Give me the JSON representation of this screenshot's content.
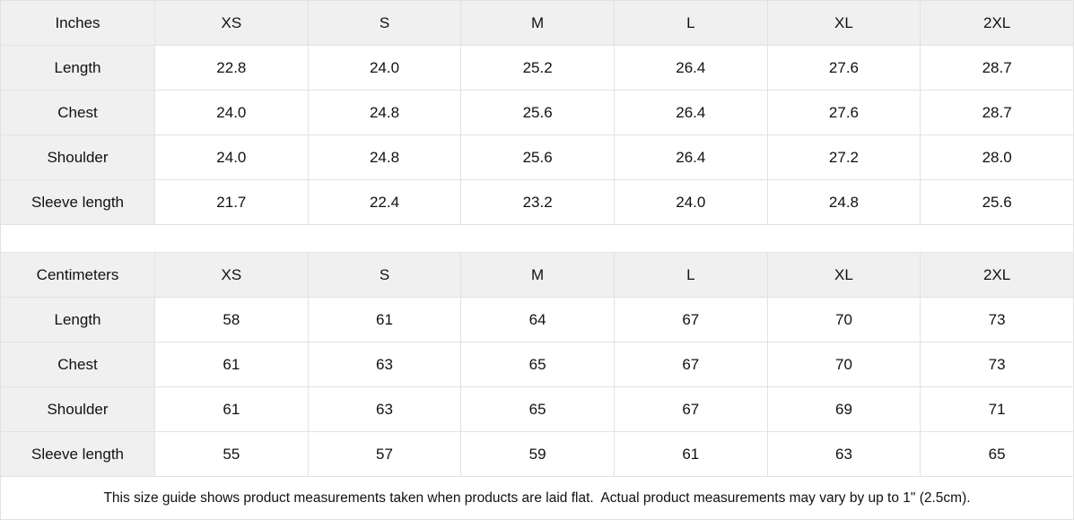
{
  "page": {
    "background": "#ffffff",
    "header_bg": "#f0f0f1",
    "border_color": "#e2e2e2",
    "text_color": "#111111"
  },
  "tables": [
    {
      "unit_label": "Inches",
      "columns": [
        "XS",
        "S",
        "M",
        "L",
        "XL",
        "2XL"
      ],
      "rows": [
        {
          "label": "Length",
          "values": [
            "22.8",
            "24.0",
            "25.2",
            "26.4",
            "27.6",
            "28.7"
          ]
        },
        {
          "label": "Chest",
          "values": [
            "24.0",
            "24.8",
            "25.6",
            "26.4",
            "27.6",
            "28.7"
          ]
        },
        {
          "label": "Shoulder",
          "values": [
            "24.0",
            "24.8",
            "25.6",
            "26.4",
            "27.2",
            "28.0"
          ]
        },
        {
          "label": "Sleeve length",
          "values": [
            "21.7",
            "22.4",
            "23.2",
            "24.0",
            "24.8",
            "25.6"
          ]
        }
      ]
    },
    {
      "unit_label": "Centimeters",
      "columns": [
        "XS",
        "S",
        "M",
        "L",
        "XL",
        "2XL"
      ],
      "rows": [
        {
          "label": "Length",
          "values": [
            "58",
            "61",
            "64",
            "67",
            "70",
            "73"
          ]
        },
        {
          "label": "Chest",
          "values": [
            "61",
            "63",
            "65",
            "67",
            "70",
            "73"
          ]
        },
        {
          "label": "Shoulder",
          "values": [
            "61",
            "63",
            "65",
            "67",
            "69",
            "71"
          ]
        },
        {
          "label": "Sleeve length",
          "values": [
            "55",
            "57",
            "59",
            "61",
            "63",
            "65"
          ]
        }
      ]
    }
  ],
  "footnote": "This size guide shows product measurements taken when products are laid flat.  Actual product measurements may vary by up to 1\" (2.5cm)."
}
